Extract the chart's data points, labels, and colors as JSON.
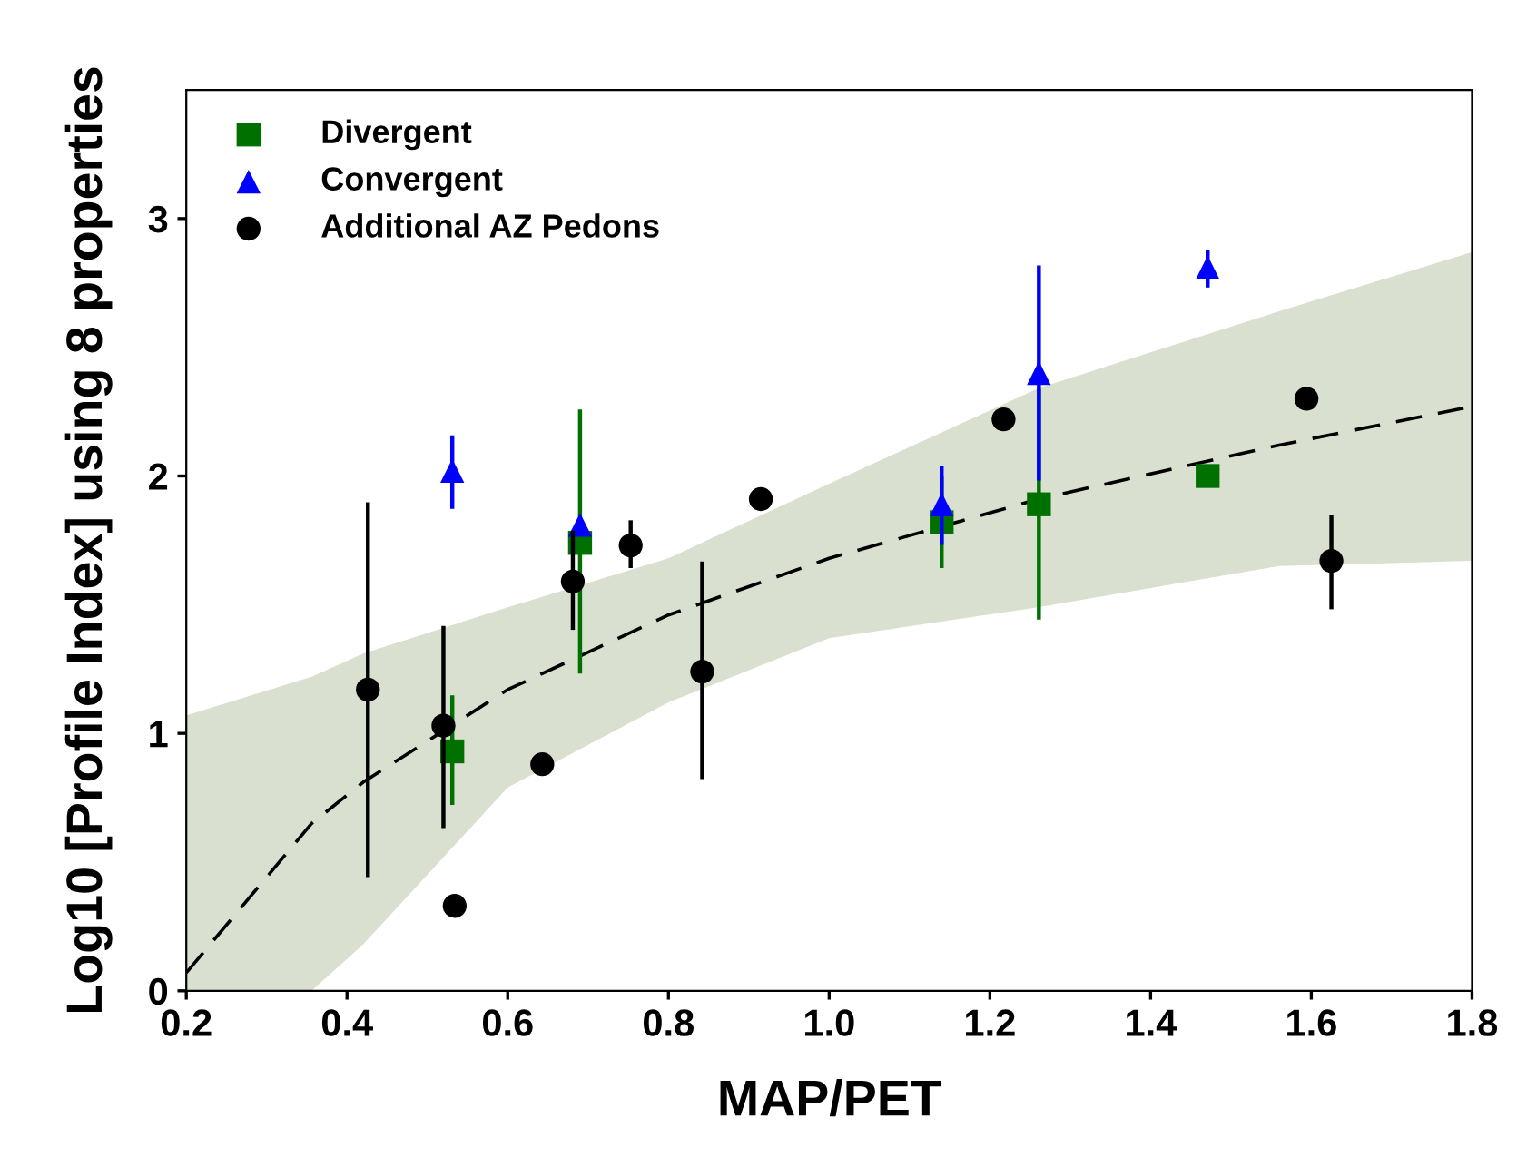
{
  "chart_data": {
    "type": "scatter",
    "xlabel": "MAP/PET",
    "ylabel": "Log10 [Profile Index] using 8 properties",
    "xlim": [
      0.2,
      1.8
    ],
    "ylim": [
      0,
      3.5
    ],
    "xticks": [
      0.2,
      0.4,
      0.6,
      0.8,
      {
        "value": 1,
        "label": "1.0"
      },
      1.2,
      1.4,
      1.6,
      1.8
    ],
    "yticks": [
      0,
      1,
      2,
      3
    ],
    "grid": false,
    "legend": "top left",
    "series": [
      {
        "type": "line",
        "color": "#000000",
        "line_style": "dashed",
        "marker": "none",
        "x": [
          0.2,
          0.356,
          0.42,
          0.6,
          0.8,
          1.0,
          1.26,
          1.56,
          1.8
        ],
        "values": [
          0.07,
          0.65,
          0.81,
          1.17,
          1.46,
          1.68,
          1.91,
          2.12,
          2.27
        ],
        "lower": [
          0,
          0,
          0.18,
          0.79,
          1.12,
          1.37,
          1.49,
          1.65,
          1.67
        ],
        "upper": [
          1.07,
          1.22,
          1.31,
          1.49,
          1.68,
          1.97,
          2.34,
          2.64,
          2.87
        ]
      },
      {
        "name": "Divergent",
        "type": "scatter",
        "marker": "square",
        "color": "#007000",
        "x": [
          0.531,
          0.69,
          1.14,
          1.261,
          1.471
        ],
        "values": [
          0.93,
          1.74,
          1.82,
          1.89,
          2.0
        ],
        "errors": [
          [
            0.73,
            1.14
          ],
          [
            1.24,
            2.25
          ],
          [
            1.65,
            1.99
          ],
          [
            1.45,
            2.33
          ],
          null
        ]
      },
      {
        "name": "Convergent",
        "type": "scatter",
        "marker": "triangle",
        "color": "#0000ff",
        "x": [
          0.531,
          0.69,
          1.14,
          1.261,
          1.471
        ],
        "values": [
          2.02,
          1.81,
          1.89,
          2.4,
          2.81
        ],
        "errors": [
          [
            1.88,
            2.15
          ],
          null,
          [
            1.74,
            2.03
          ],
          [
            1.99,
            2.81
          ],
          [
            2.74,
            2.87
          ]
        ]
      },
      {
        "name": "Additional AZ Pedons",
        "type": "scatter",
        "marker": "circle",
        "color": "#000000",
        "x": [
          0.426,
          0.52,
          0.534,
          0.643,
          0.681,
          0.753,
          0.842,
          0.915,
          1.217,
          1.594,
          1.625
        ],
        "values": [
          1.17,
          1.03,
          0.33,
          0.88,
          1.59,
          1.73,
          1.24,
          1.91,
          2.22,
          2.3,
          1.67
        ],
        "errors": [
          [
            0.45,
            1.89
          ],
          [
            0.64,
            1.41
          ],
          null,
          null,
          [
            1.41,
            1.78
          ],
          [
            1.65,
            1.82
          ],
          [
            0.83,
            1.66
          ],
          null,
          null,
          null,
          [
            1.49,
            1.84
          ]
        ]
      }
    ]
  }
}
